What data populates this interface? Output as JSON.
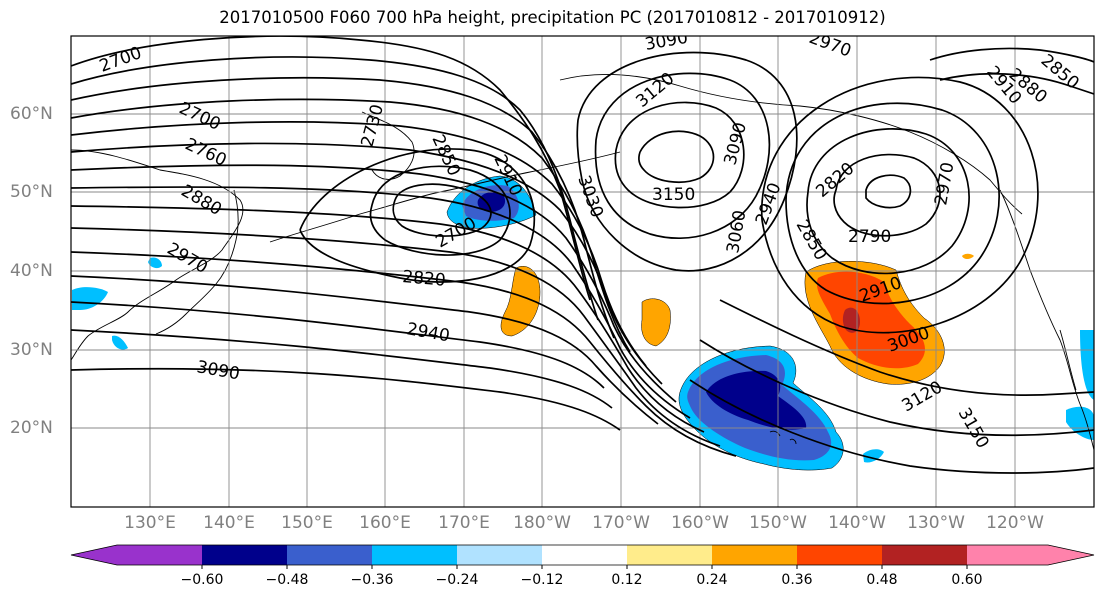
{
  "title": "2017010500 F060 700 hPa height, precipitation PC (2017010812 - 2017010912)",
  "lat_labels": [
    "60°N",
    "50°N",
    "40°N",
    "30°N",
    "20°N"
  ],
  "lon_labels": [
    "130°E",
    "140°E",
    "150°E",
    "160°E",
    "170°E",
    "180°W",
    "170°W",
    "160°W",
    "150°W",
    "140°W",
    "130°W",
    "120°W"
  ],
  "contour_labels": [
    "2700",
    "2700",
    "2760",
    "2730",
    "2850",
    "2910",
    "3030",
    "3090",
    "3120",
    "3150",
    "3090",
    "2940",
    "2820",
    "2790",
    "2850",
    "3060",
    "2970",
    "2910",
    "2880",
    "2850",
    "2880",
    "2970",
    "2820",
    "2940",
    "3090",
    "2700",
    "2910",
    "3000",
    "3120",
    "3150",
    "2970"
  ],
  "colorbar": {
    "tick_labels": [
      "−0.60",
      "−0.48",
      "−0.36",
      "−0.24",
      "−0.12",
      "0.12",
      "0.24",
      "0.36",
      "0.48",
      "0.60"
    ],
    "colors": [
      "#9932cc",
      "#00008b",
      "#3a5fcd",
      "#00bfff",
      "#b0e2ff",
      "#ffffff",
      "#ffec8b",
      "#ffa500",
      "#ff4500",
      "#b22222",
      "#ff82ab"
    ]
  },
  "chart_data": {
    "type": "map",
    "field_contours": "700 hPa height",
    "shading": "precipitation PC",
    "contour_interval": 30,
    "levels": [
      -0.6,
      -0.48,
      -0.36,
      -0.24,
      -0.12,
      0.12,
      0.24,
      0.36,
      0.48,
      0.6
    ],
    "grid": true
  }
}
